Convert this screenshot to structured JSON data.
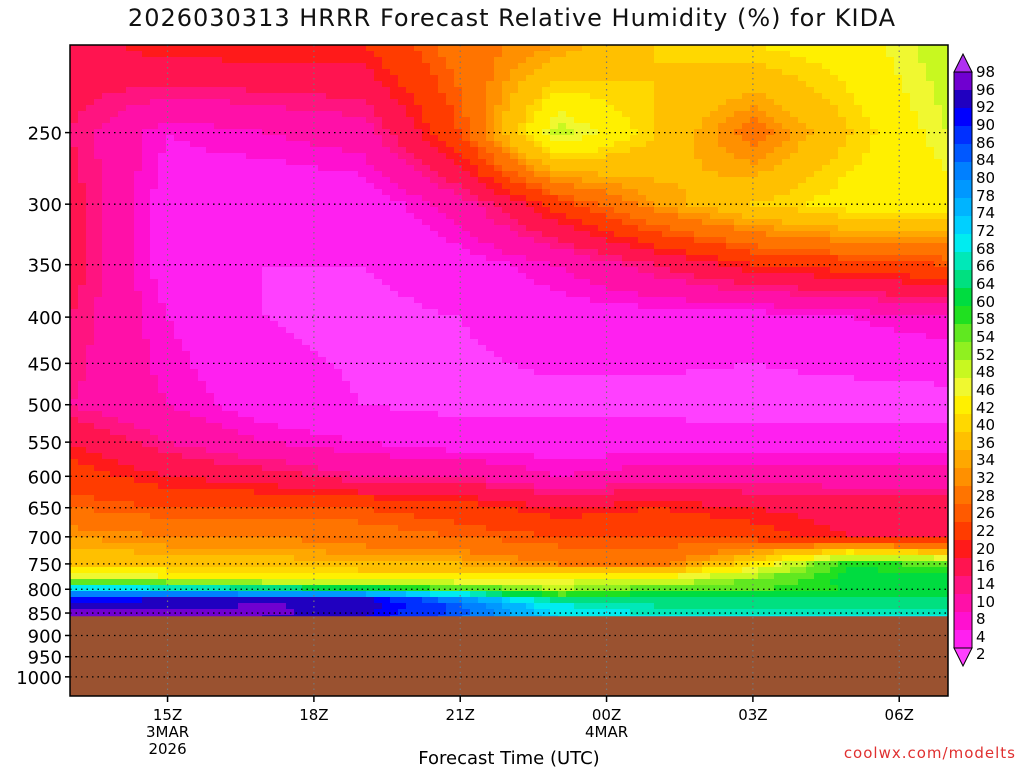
{
  "title": "2026030313 HRRR Forecast Relative Humidity (%) for KIDA",
  "credit": "coolwx.com/modelts",
  "chart_data": {
    "type": "heatmap",
    "title": "2026030313 HRRR Forecast Relative Humidity (%) for KIDA",
    "xlabel": "Forecast Time (UTC)",
    "ylabel": "",
    "x_ticks": [
      {
        "hour": 15,
        "label": "15Z",
        "sub1": "3MAR",
        "sub2": "2026"
      },
      {
        "hour": 18,
        "label": "18Z",
        "sub1": "",
        "sub2": ""
      },
      {
        "hour": 21,
        "label": "21Z",
        "sub1": "",
        "sub2": ""
      },
      {
        "hour": 24,
        "label": "00Z",
        "sub1": "4MAR",
        "sub2": ""
      },
      {
        "hour": 27,
        "label": "03Z",
        "sub1": "",
        "sub2": ""
      },
      {
        "hour": 30,
        "label": "06Z",
        "sub1": "",
        "sub2": ""
      }
    ],
    "xlim": [
      13,
      31
    ],
    "y_ticks": [
      250,
      300,
      350,
      400,
      450,
      500,
      550,
      600,
      650,
      700,
      750,
      800,
      850,
      900,
      950,
      1000
    ],
    "ylim_hpa": [
      200,
      1050
    ],
    "yscale": "log",
    "grid": true,
    "below_ground": {
      "pressure": 857,
      "color": "#9a5230"
    },
    "colorbar": {
      "labels": [
        98,
        96,
        92,
        90,
        86,
        84,
        80,
        78,
        74,
        72,
        68,
        66,
        64,
        60,
        58,
        54,
        52,
        48,
        46,
        42,
        40,
        36,
        34,
        32,
        28,
        26,
        22,
        20,
        16,
        14,
        10,
        8,
        4,
        2
      ],
      "colors": [
        "#b030f0",
        "#7000d0",
        "#2000c0",
        "#0000ff",
        "#0030ff",
        "#0058ff",
        "#0080ff",
        "#0098ff",
        "#00b4ff",
        "#00d0ff",
        "#00ecf0",
        "#00e8b8",
        "#00e080",
        "#00dc40",
        "#20e020",
        "#60e820",
        "#90f020",
        "#c8f820",
        "#f0f830",
        "#fff000",
        "#ffd800",
        "#ffc000",
        "#ffa800",
        "#ff9000",
        "#ff7400",
        "#ff5a00",
        "#ff3c00",
        "#ff1a1a",
        "#ff1450",
        "#ff1480",
        "#ff10a8",
        "#ff10d0",
        "#ff20f0",
        "#ff40ff"
      ]
    },
    "rh_field": {
      "hours": [
        13,
        15,
        17,
        19,
        21,
        23,
        25,
        27,
        29,
        31
      ],
      "pressures": [
        200,
        250,
        300,
        350,
        400,
        500,
        550,
        600,
        650,
        700,
        750,
        780,
        800,
        820,
        840,
        857
      ],
      "values": [
        [
          18,
          22,
          22,
          22,
          30,
          34,
          40,
          42,
          44,
          50
        ],
        [
          16,
          8,
          10,
          12,
          26,
          50,
          40,
          30,
          40,
          48
        ],
        [
          18,
          6,
          4,
          5,
          12,
          24,
          34,
          40,
          44,
          44
        ],
        [
          18,
          6,
          4,
          4,
          6,
          10,
          16,
          22,
          24,
          26
        ],
        [
          16,
          8,
          4,
          3,
          4,
          6,
          6,
          6,
          8,
          10
        ],
        [
          14,
          10,
          6,
          4,
          3,
          3,
          3,
          2,
          2,
          2
        ],
        [
          20,
          14,
          10,
          8,
          6,
          6,
          6,
          6,
          6,
          6
        ],
        [
          24,
          20,
          18,
          14,
          14,
          10,
          12,
          12,
          12,
          12
        ],
        [
          28,
          26,
          26,
          26,
          24,
          20,
          22,
          20,
          18,
          18
        ],
        [
          34,
          32,
          32,
          30,
          28,
          26,
          26,
          24,
          20,
          18
        ],
        [
          40,
          38,
          38,
          36,
          36,
          32,
          30,
          42,
          60,
          56
        ],
        [
          50,
          48,
          46,
          46,
          44,
          46,
          48,
          54,
          62,
          62
        ],
        [
          74,
          70,
          68,
          64,
          58,
          52,
          56,
          58,
          60,
          60
        ],
        [
          90,
          92,
          92,
          94,
          80,
          64,
          66,
          64,
          64,
          64
        ],
        [
          96,
          96,
          98,
          94,
          86,
          70,
          66,
          66,
          66,
          66
        ],
        [
          96,
          96,
          96,
          92,
          84,
          72,
          68,
          68,
          68,
          68
        ]
      ]
    }
  }
}
